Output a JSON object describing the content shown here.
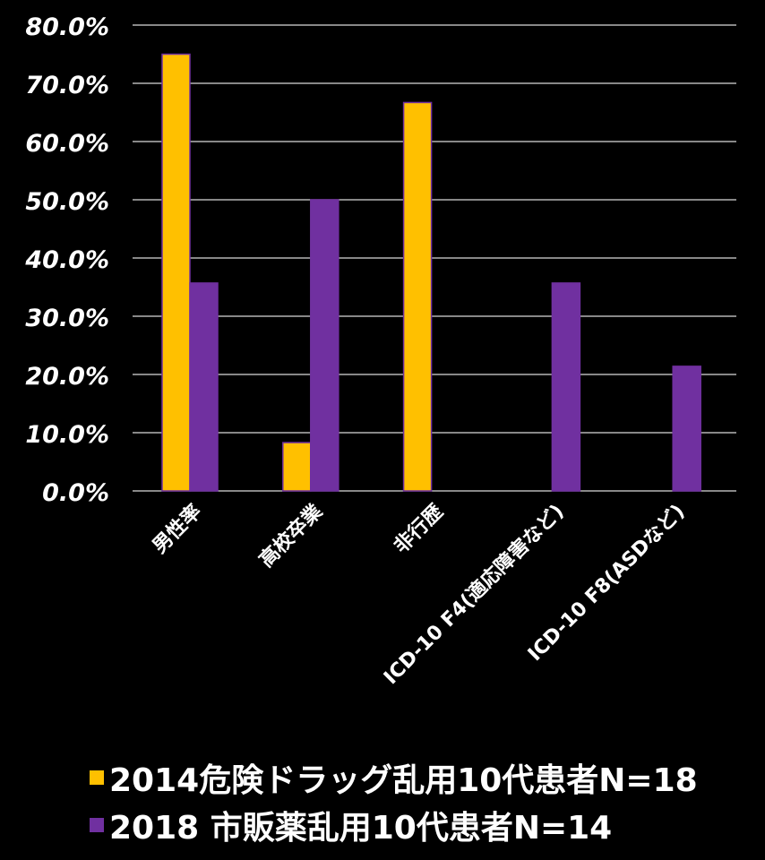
{
  "chart_data": {
    "type": "bar",
    "categories": [
      "男性率",
      "高校卒業",
      "非行歴",
      "ICD-10 F4(適応障害など)",
      "ICD-10 F8(ASDなど)"
    ],
    "series": [
      {
        "name": "2014危険ドラッグ乱用10代患者N=18",
        "color": "#FFC000",
        "values": [
          75.0,
          8.3,
          66.7,
          0,
          0
        ]
      },
      {
        "name": "2018 市販薬乱用10代患者N=14",
        "color": "#7030A0",
        "values": [
          35.7,
          50.0,
          0,
          35.7,
          21.4
        ]
      }
    ],
    "y_ticks": [
      "0.0%",
      "10.0%",
      "20.0%",
      "30.0%",
      "40.0%",
      "50.0%",
      "60.0%",
      "70.0%",
      "80.0%"
    ],
    "ylim": [
      0,
      80
    ],
    "grid": true,
    "legend_position": "bottom"
  }
}
